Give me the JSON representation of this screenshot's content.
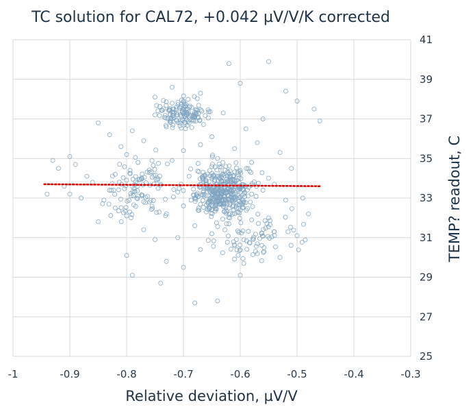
{
  "chart_data": {
    "type": "scatter",
    "title": "TC solution for CAL72, +0.042 µV/V/K corrected",
    "xlabel": "Relative deviation, µV/V",
    "ylabel": "TEMP? readout, C",
    "xlim": [
      -1,
      -0.3
    ],
    "ylim": [
      25,
      41
    ],
    "x_ticks": [
      -1,
      -0.9,
      -0.8,
      -0.7,
      -0.6,
      -0.5,
      -0.4,
      -0.3
    ],
    "x_tick_labels": [
      "-1",
      "-0.9",
      "-0.8",
      "-0.7",
      "-0.6",
      "-0.5",
      "-0.4",
      "-0.3"
    ],
    "y_ticks": [
      25,
      27,
      29,
      31,
      33,
      35,
      37,
      39,
      41
    ],
    "y_tick_labels": [
      "25",
      "27",
      "29",
      "31",
      "33",
      "35",
      "37",
      "39",
      "41"
    ],
    "y_axis_side": "right",
    "grid": true,
    "marker_color": "#7fa3bf",
    "trendline": {
      "style": "dotted",
      "color": "#e00000",
      "points": [
        [
          -0.945,
          33.7
        ],
        [
          -0.46,
          33.6
        ]
      ]
    },
    "series": [
      {
        "values": [
          [
            -0.94,
            33.2
          ],
          [
            -0.93,
            34.9
          ],
          [
            -0.92,
            34.5
          ],
          [
            -0.91,
            33.6
          ],
          [
            -0.9,
            35.1
          ],
          [
            -0.9,
            33.2
          ],
          [
            -0.89,
            34.7
          ],
          [
            -0.88,
            33.0
          ],
          [
            -0.87,
            34.1
          ],
          [
            -0.86,
            33.8
          ],
          [
            -0.85,
            36.8
          ],
          [
            -0.85,
            31.8
          ],
          [
            -0.84,
            32.9
          ],
          [
            -0.83,
            36.2
          ],
          [
            -0.83,
            33.4
          ],
          [
            -0.82,
            34.2
          ],
          [
            -0.82,
            32.5
          ],
          [
            -0.81,
            35.6
          ],
          [
            -0.8,
            35.2
          ],
          [
            -0.8,
            33.9
          ],
          [
            -0.8,
            32.1
          ],
          [
            -0.8,
            30.1
          ],
          [
            -0.79,
            29.1
          ],
          [
            -0.79,
            36.4
          ],
          [
            -0.78,
            34.8
          ],
          [
            -0.78,
            33.1
          ],
          [
            -0.77,
            31.4
          ],
          [
            -0.77,
            35.9
          ],
          [
            -0.76,
            32.8
          ],
          [
            -0.76,
            34.3
          ],
          [
            -0.75,
            37.2
          ],
          [
            -0.75,
            38.1
          ],
          [
            -0.75,
            30.9
          ],
          [
            -0.74,
            33.7
          ],
          [
            -0.74,
            28.7
          ],
          [
            -0.73,
            36.6
          ],
          [
            -0.73,
            32.2
          ],
          [
            -0.73,
            29.8
          ],
          [
            -0.72,
            34.9
          ],
          [
            -0.72,
            38.6
          ],
          [
            -0.71,
            33.3
          ],
          [
            -0.71,
            31.0
          ],
          [
            -0.7,
            37.9
          ],
          [
            -0.7,
            35.4
          ],
          [
            -0.7,
            32.6
          ],
          [
            -0.7,
            29.5
          ],
          [
            -0.69,
            34.1
          ],
          [
            -0.69,
            36.8
          ],
          [
            -0.68,
            33.0
          ],
          [
            -0.68,
            31.6
          ],
          [
            -0.68,
            27.7
          ],
          [
            -0.67,
            35.7
          ],
          [
            -0.67,
            38.3
          ],
          [
            -0.67,
            30.4
          ],
          [
            -0.66,
            33.8
          ],
          [
            -0.66,
            32.3
          ],
          [
            -0.65,
            36.1
          ],
          [
            -0.65,
            34.6
          ],
          [
            -0.65,
            31.2
          ],
          [
            -0.64,
            33.5
          ],
          [
            -0.64,
            35.0
          ],
          [
            -0.64,
            27.8
          ],
          [
            -0.63,
            32.7
          ],
          [
            -0.63,
            37.3
          ],
          [
            -0.63,
            34.2
          ],
          [
            -0.62,
            39.8
          ],
          [
            -0.62,
            33.1
          ],
          [
            -0.62,
            31.7
          ],
          [
            -0.61,
            35.5
          ],
          [
            -0.61,
            33.9
          ],
          [
            -0.61,
            30.6
          ],
          [
            -0.6,
            34.4
          ],
          [
            -0.6,
            32.4
          ],
          [
            -0.6,
            29.1
          ],
          [
            -0.6,
            38.8
          ],
          [
            -0.59,
            33.6
          ],
          [
            -0.59,
            36.5
          ],
          [
            -0.58,
            34.8
          ],
          [
            -0.58,
            31.9
          ],
          [
            -0.58,
            33.2
          ],
          [
            -0.57,
            35.8
          ],
          [
            -0.57,
            30.2
          ],
          [
            -0.56,
            33.4
          ],
          [
            -0.56,
            37.0
          ],
          [
            -0.55,
            34.0
          ],
          [
            -0.55,
            32.0
          ],
          [
            -0.55,
            39.9
          ],
          [
            -0.54,
            31.3
          ],
          [
            -0.54,
            33.7
          ],
          [
            -0.53,
            35.3
          ],
          [
            -0.53,
            30.0
          ],
          [
            -0.52,
            38.4
          ],
          [
            -0.52,
            32.9
          ],
          [
            -0.51,
            34.5
          ],
          [
            -0.5,
            31.1
          ],
          [
            -0.5,
            37.9
          ],
          [
            -0.49,
            33.0
          ],
          [
            -0.48,
            32.2
          ],
          [
            -0.47,
            37.5
          ],
          [
            -0.46,
            36.9
          ]
        ]
      }
    ]
  }
}
